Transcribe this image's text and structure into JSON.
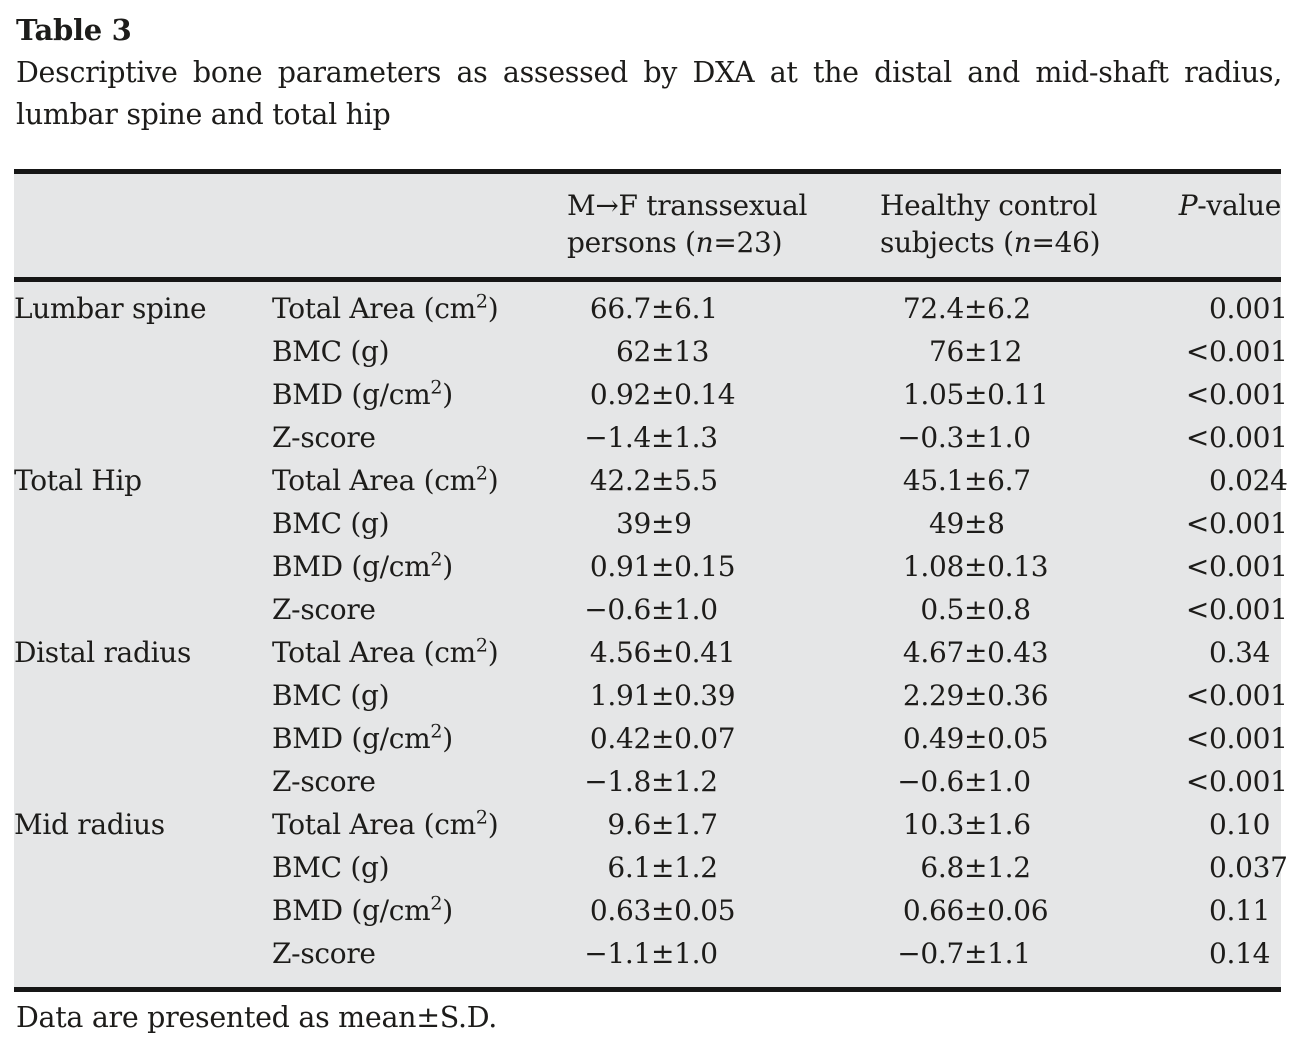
{
  "colors": {
    "table_bg": "#e5e6e7",
    "rule": "#161616",
    "ink": "#1d1c1a"
  },
  "page": {
    "title": "Table 3",
    "caption_line1": "Descriptive bone parameters as assessed by DXA at the distal and mid-shaft radius,",
    "caption_line2": "lumbar spine and total hip",
    "footnote": "Data are presented as mean±S.D."
  },
  "table": {
    "header": {
      "site_col": "",
      "param_col": "",
      "mf": {
        "line1": "M→F transsexual",
        "line2_prefix": "persons (",
        "n": "n",
        "line2_suffix": "=23)"
      },
      "control": {
        "line1": "Healthy control",
        "line2_prefix": "subjects (",
        "n": "n",
        "line2_suffix": "=46)"
      },
      "p": {
        "symbol": "P",
        "suffix": "-value"
      }
    },
    "rows": [
      {
        "site": "Lumbar spine",
        "param": "Total Area (cm²)",
        "mf": "66.7±6.1",
        "control": "72.4±6.2",
        "p": "0.001"
      },
      {
        "site": "",
        "param": "BMC (g)",
        "mf": "62±13",
        "control": "76±12",
        "p": "<0.001"
      },
      {
        "site": "",
        "param": "BMD (g/cm²)",
        "mf": "0.92±0.14",
        "control": "1.05±0.11",
        "p": "<0.001"
      },
      {
        "site": "",
        "param": "Z-score",
        "mf": "−1.4±1.3",
        "control": "−0.3±1.0",
        "p": "<0.001"
      },
      {
        "site": "Total Hip",
        "param": "Total Area (cm²)",
        "mf": "42.2±5.5",
        "control": "45.1±6.7",
        "p": "0.024"
      },
      {
        "site": "",
        "param": "BMC (g)",
        "mf": "39±9",
        "control": "49±8",
        "p": "<0.001"
      },
      {
        "site": "",
        "param": "BMD (g/cm²)",
        "mf": "0.91±0.15",
        "control": "1.08±0.13",
        "p": "<0.001"
      },
      {
        "site": "",
        "param": "Z-score",
        "mf": "−0.6±1.0",
        "control": "0.5±0.8",
        "p": "<0.001"
      },
      {
        "site": "Distal radius",
        "param": "Total Area (cm²)",
        "mf": "4.56±0.41",
        "control": "4.67±0.43",
        "p": "0.34"
      },
      {
        "site": "",
        "param": "BMC (g)",
        "mf": "1.91±0.39",
        "control": "2.29±0.36",
        "p": "<0.001"
      },
      {
        "site": "",
        "param": "BMD (g/cm²)",
        "mf": "0.42±0.07",
        "control": "0.49±0.05",
        "p": "<0.001"
      },
      {
        "site": "",
        "param": "Z-score",
        "mf": "−1.8±1.2",
        "control": "−0.6±1.0",
        "p": "<0.001"
      },
      {
        "site": "Mid radius",
        "param": "Total Area (cm²)",
        "mf": "9.6±1.7",
        "control": "10.3±1.6",
        "p": "0.10"
      },
      {
        "site": "",
        "param": "BMC (g)",
        "mf": "6.1±1.2",
        "control": "6.8±1.2",
        "p": "0.037"
      },
      {
        "site": "",
        "param": "BMD (g/cm²)",
        "mf": "0.63±0.05",
        "control": "0.66±0.06",
        "p": "0.11"
      },
      {
        "site": "",
        "param": "Z-score",
        "mf": "−1.1±1.0",
        "control": "−0.7±1.1",
        "p": "0.14"
      }
    ]
  }
}
